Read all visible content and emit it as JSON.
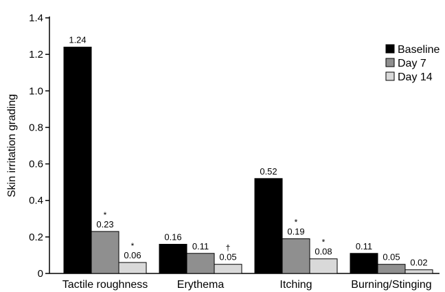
{
  "chart_data": {
    "type": "bar",
    "ylabel": "Skin irritation grading",
    "xlabel": "",
    "ylim": [
      0,
      1.4
    ],
    "yticks": [
      0,
      0.2,
      0.4,
      0.6,
      0.8,
      1.0,
      1.2,
      1.4
    ],
    "ytick_labels": [
      "0",
      "0.2",
      "0.4",
      "0.6",
      "0.8",
      "1.0",
      "1.2",
      "1.4"
    ],
    "categories": [
      "Tactile roughness",
      "Erythema",
      "Itching",
      "Burning/Stinging"
    ],
    "legend_position": "top-right",
    "series": [
      {
        "name": "Baseline",
        "color": "#000000",
        "values": [
          1.24,
          0.16,
          0.52,
          0.11
        ],
        "labels": [
          "1.24",
          "0.16",
          "0.52",
          "0.11"
        ],
        "marks": [
          "",
          "",
          "",
          ""
        ]
      },
      {
        "name": "Day 7",
        "color": "#8f8f8f",
        "values": [
          0.23,
          0.11,
          0.19,
          0.05
        ],
        "labels": [
          "0.23",
          "0.11",
          "0.19",
          "0.05"
        ],
        "marks": [
          "*",
          "",
          "*",
          ""
        ]
      },
      {
        "name": "Day 14",
        "color": "#d9d9d9",
        "values": [
          0.06,
          0.05,
          0.08,
          0.02
        ],
        "labels": [
          "0.06",
          "0.05",
          "0.08",
          "0.02"
        ],
        "marks": [
          "*",
          "†",
          "*",
          ""
        ]
      }
    ]
  }
}
